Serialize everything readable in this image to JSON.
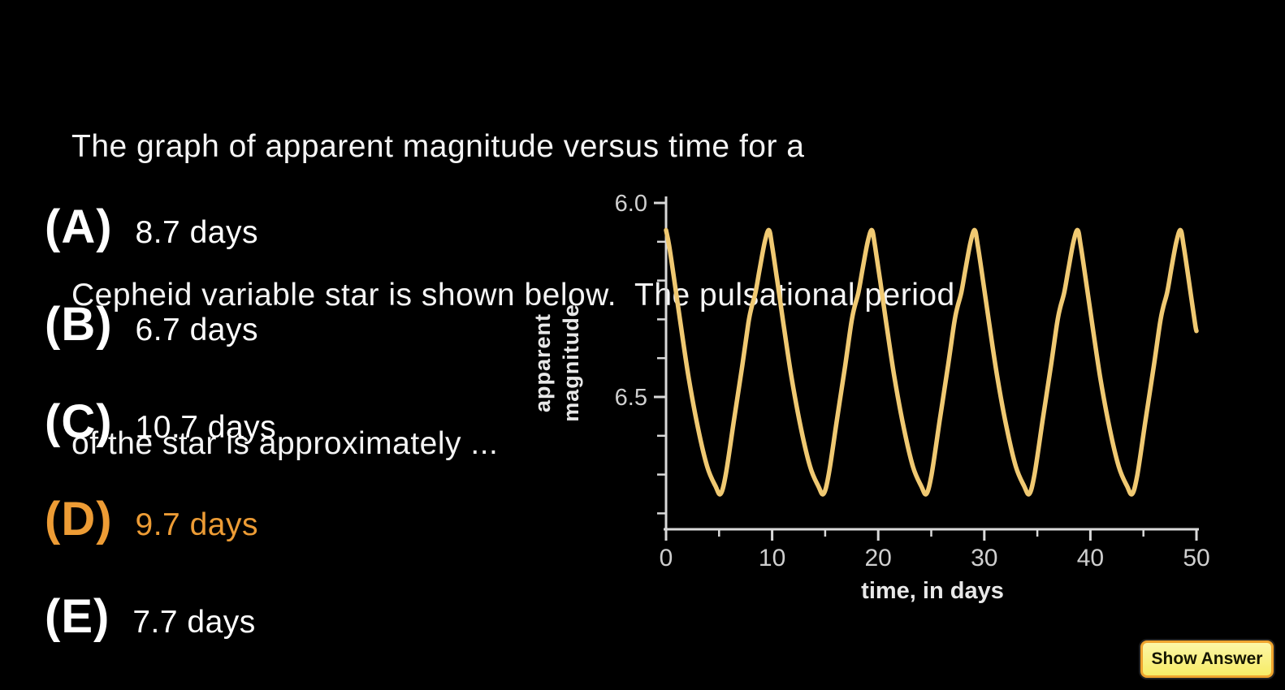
{
  "colors": {
    "background": "#000000",
    "question_text": "#f4f4f4",
    "option_text": "#ffffff",
    "selected_option": "#ED9C35",
    "curve": "#F0C972",
    "axis": "#d9d9d9",
    "tick_label": "#cfcfcf",
    "axis_title": "#e8e8e8",
    "button_fill_top": "#FCF6A6",
    "button_fill_bottom": "#F7EC67",
    "button_border": "#EFA42E",
    "button_text": "#151500"
  },
  "question": {
    "lines": [
      "The graph of apparent magnitude versus time for a",
      "Cepheid variable star is shown below.  The pulsational period",
      "of the star is approximately ..."
    ]
  },
  "options": [
    {
      "label": "(A)",
      "text": "8.7 days",
      "selected": false
    },
    {
      "label": "(B)",
      "text": "6.7 days",
      "selected": false
    },
    {
      "label": "(C)",
      "text": "10.7 days",
      "selected": false
    },
    {
      "label": "(D)",
      "text": "9.7 days",
      "selected": true
    },
    {
      "label": "(E)",
      "text": "7.7 days",
      "selected": false
    }
  ],
  "button": {
    "label": "Show Answer"
  },
  "chart_data": {
    "type": "line",
    "title": "",
    "xlabel": "time, in days",
    "ylabel": "apparent magnitude",
    "ylabel_lines": [
      "apparent",
      "magnitude"
    ],
    "x_range": [
      0,
      50
    ],
    "x_ticks_major": [
      0,
      10,
      20,
      30,
      40,
      50
    ],
    "x_ticks_minor": [
      5,
      15,
      25,
      35,
      45
    ],
    "y_tick_labels": [
      "6.0",
      "6.5"
    ],
    "y_ticks_major": [
      6.0,
      6.5
    ],
    "y_ticks_minor": [
      6.1,
      6.2,
      6.3,
      6.4,
      6.6,
      6.7,
      6.8
    ],
    "y_axis_inverted": true,
    "y_range_displayed": [
      5.98,
      6.84
    ],
    "grid": false,
    "legend": "none",
    "period_days": 9.7,
    "peak_magnitude": 6.07,
    "trough_magnitude": 6.75,
    "series": [
      {
        "name": "apparent magnitude of Cepheid variable",
        "points": [
          [
            0.0,
            6.07
          ],
          [
            0.29,
            6.11
          ],
          [
            0.78,
            6.2
          ],
          [
            1.36,
            6.31
          ],
          [
            2.13,
            6.45
          ],
          [
            3.01,
            6.58
          ],
          [
            3.88,
            6.68
          ],
          [
            4.66,
            6.73
          ],
          [
            5.14,
            6.75
          ],
          [
            5.63,
            6.7
          ],
          [
            6.4,
            6.56
          ],
          [
            7.18,
            6.42
          ],
          [
            7.76,
            6.31
          ],
          [
            8.05,
            6.27
          ],
          [
            8.44,
            6.23
          ],
          [
            8.83,
            6.17
          ],
          [
            9.31,
            6.1
          ],
          [
            9.7,
            6.07
          ],
          [
            9.99,
            6.11
          ],
          [
            10.48,
            6.2
          ],
          [
            11.06,
            6.31
          ],
          [
            11.83,
            6.45
          ],
          [
            12.71,
            6.58
          ],
          [
            13.58,
            6.68
          ],
          [
            14.36,
            6.73
          ],
          [
            14.84,
            6.75
          ],
          [
            15.33,
            6.7
          ],
          [
            16.1,
            6.56
          ],
          [
            16.88,
            6.42
          ],
          [
            17.46,
            6.31
          ],
          [
            17.75,
            6.27
          ],
          [
            18.14,
            6.23
          ],
          [
            18.53,
            6.17
          ],
          [
            19.01,
            6.1
          ],
          [
            19.4,
            6.07
          ],
          [
            19.69,
            6.11
          ],
          [
            20.18,
            6.2
          ],
          [
            20.76,
            6.31
          ],
          [
            21.53,
            6.45
          ],
          [
            22.41,
            6.58
          ],
          [
            23.28,
            6.68
          ],
          [
            24.06,
            6.73
          ],
          [
            24.54,
            6.75
          ],
          [
            25.03,
            6.7
          ],
          [
            25.8,
            6.56
          ],
          [
            26.58,
            6.42
          ],
          [
            27.16,
            6.31
          ],
          [
            27.45,
            6.27
          ],
          [
            27.84,
            6.23
          ],
          [
            28.23,
            6.17
          ],
          [
            28.71,
            6.1
          ],
          [
            29.1,
            6.07
          ],
          [
            29.39,
            6.11
          ],
          [
            29.88,
            6.2
          ],
          [
            30.46,
            6.31
          ],
          [
            31.23,
            6.45
          ],
          [
            32.11,
            6.58
          ],
          [
            32.98,
            6.68
          ],
          [
            33.76,
            6.73
          ],
          [
            34.24,
            6.75
          ],
          [
            34.73,
            6.7
          ],
          [
            35.5,
            6.56
          ],
          [
            36.28,
            6.42
          ],
          [
            36.86,
            6.31
          ],
          [
            37.15,
            6.27
          ],
          [
            37.54,
            6.23
          ],
          [
            37.93,
            6.17
          ],
          [
            38.41,
            6.1
          ],
          [
            38.8,
            6.07
          ],
          [
            39.09,
            6.11
          ],
          [
            39.58,
            6.2
          ],
          [
            40.16,
            6.31
          ],
          [
            40.93,
            6.45
          ],
          [
            41.81,
            6.58
          ],
          [
            42.68,
            6.68
          ],
          [
            43.46,
            6.73
          ],
          [
            43.94,
            6.75
          ],
          [
            44.43,
            6.7
          ],
          [
            45.2,
            6.56
          ],
          [
            45.98,
            6.42
          ],
          [
            46.56,
            6.31
          ],
          [
            46.85,
            6.27
          ],
          [
            47.24,
            6.23
          ],
          [
            47.63,
            6.17
          ],
          [
            48.11,
            6.1
          ],
          [
            48.5,
            6.07
          ],
          [
            48.79,
            6.11
          ],
          [
            49.28,
            6.2
          ],
          [
            49.86,
            6.31
          ],
          [
            50.0,
            6.33
          ]
        ]
      }
    ]
  }
}
